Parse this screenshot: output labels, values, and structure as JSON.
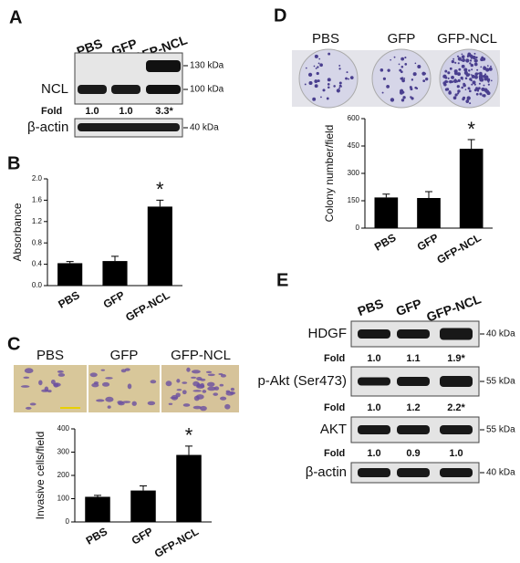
{
  "panels": [
    {
      "letter": "A",
      "lanes": [
        "PBS",
        "GFP",
        "GFP-NCL"
      ],
      "blots": [
        {
          "label": "NCL",
          "markers": [
            "130 kDa",
            "100 kDa"
          ]
        },
        {
          "label": "β-actin",
          "markers": [
            "40 kDa"
          ]
        }
      ],
      "fold": {
        "label": "Fold",
        "values": [
          "1.0",
          "1.0",
          "3.3*"
        ]
      }
    },
    {
      "letter": "E",
      "lanes": [
        "PBS",
        "GFP",
        "GFP-NCL"
      ],
      "blots": [
        {
          "label": "HDGF",
          "marker": "40 kDa"
        },
        {
          "label": "p-Akt (Ser473)",
          "marker": "55 kDa"
        },
        {
          "label": "AKT",
          "marker": "55 kDa"
        },
        {
          "label": "β-actin",
          "marker": "40 kDa"
        }
      ],
      "folds": [
        {
          "label": "Fold",
          "values": [
            "1.0",
            "1.1",
            "1.9*"
          ]
        },
        {
          "label": "Fold",
          "values": [
            "1.0",
            "1.2",
            "2.2*"
          ]
        },
        {
          "label": "Fold",
          "values": [
            "1.0",
            "0.9",
            "1.0"
          ]
        }
      ]
    },
    {
      "letter": "C",
      "image_labels": [
        "PBS",
        "GFP",
        "GFP-NCL"
      ]
    },
    {
      "letter": "D",
      "image_labels": [
        "PBS",
        "GFP",
        "GFP-NCL"
      ]
    }
  ],
  "chart_data": [
    {
      "type": "bar",
      "panel_label": "B",
      "y_label": "Absorbance",
      "categories": [
        "PBS",
        "GFP",
        "GFP-NCL"
      ],
      "values": [
        0.42,
        0.46,
        1.48
      ],
      "errors": [
        0.03,
        0.09,
        0.12
      ],
      "color": "#000000",
      "ylim": [
        0,
        2.0
      ],
      "yticks": [
        {
          "value": 0,
          "label": "0.0"
        },
        0.4,
        0.8,
        1.2,
        1.6,
        {
          "value": 2.0,
          "label": "2.0"
        }
      ],
      "annotation": "*"
    },
    {
      "type": "bar",
      "y_label": "Invasive cells/field",
      "categories": [
        "PBS",
        "GFP",
        "GFP-NCL"
      ],
      "values": [
        108,
        135,
        288
      ],
      "errors": [
        6,
        20,
        38
      ],
      "color": "#000000",
      "ylim": [
        0,
        400
      ],
      "yticks": [
        0,
        100,
        200,
        300,
        400
      ],
      "annotation": "*"
    },
    {
      "type": "bar",
      "y_label": "Colony number/field",
      "categories": [
        "PBS",
        "GFP",
        "GFP-NCL"
      ],
      "values": [
        168,
        165,
        435
      ],
      "errors": [
        18,
        35,
        50
      ],
      "color": "#000000",
      "ylim": [
        0,
        600
      ],
      "yticks": [
        0,
        150,
        300,
        450,
        600
      ],
      "annotation": "*"
    }
  ]
}
